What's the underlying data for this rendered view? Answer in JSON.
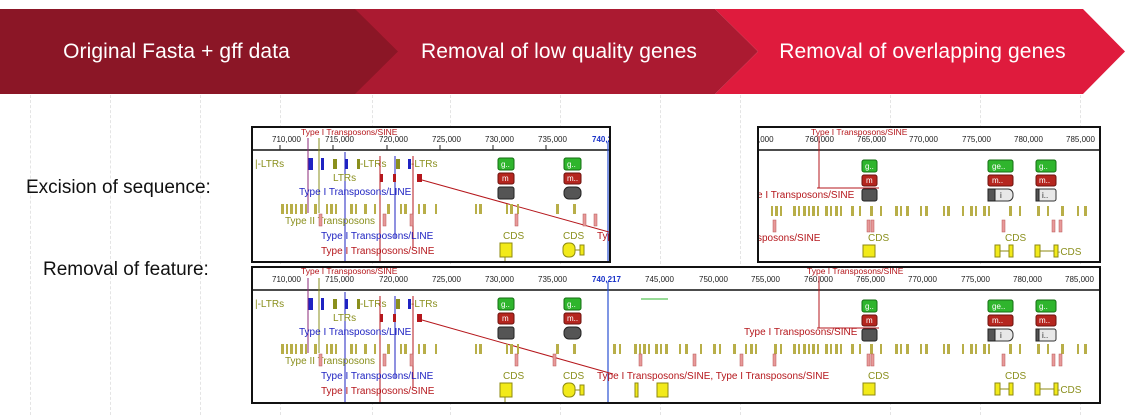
{
  "steps": [
    {
      "label": "Original Fasta + gff data"
    },
    {
      "label": "Removal of low quality genes"
    },
    {
      "label": "Removal of overlapping genes"
    }
  ],
  "rows": {
    "excision": "Excision of sequence:",
    "removal": "Removal of feature:"
  },
  "ticks_left": [
    "710,000",
    "715,000",
    "720,000",
    "725,000",
    "730,000",
    "735,000",
    "740,2"
  ],
  "ticks_right": [
    ",000",
    "760,000",
    "765,000",
    "770,000",
    "775,000",
    "780,000",
    "785,000"
  ],
  "ticks_bottom": [
    "710,000",
    "715,000",
    "720,000",
    "725,000",
    "730,000",
    "735,000",
    "740,217",
    "745,000",
    "750,000",
    "755,000",
    "760,000",
    "765,000",
    "770,000",
    "775,000",
    "780,000",
    "785,000"
  ],
  "features": {
    "ltrs": "LTRs",
    "ltrs_bracket": "-LTRs",
    "ltrs_left": "|-LTRs",
    "type1_sine": "Type I Transposons/SINE",
    "type1_line": "Type I Transposons/LINE",
    "type2": "Type II Transposons",
    "sine_partial_right": "e I Transposons/SINE",
    "sine_partial_right2": "sposons/SINE",
    "sine_partial_left": "Typ",
    "sine_combined": "Type I Transposons/SINE, Type I Transposons/SINE",
    "cds": "CDS",
    "cds_bracket": "-CDS",
    "gene_g": "g..",
    "gene_ge": "ge..",
    "gene_m": "m",
    "gene_m2": "m..",
    "gene_i": "i",
    "gene_i2": "i.."
  }
}
